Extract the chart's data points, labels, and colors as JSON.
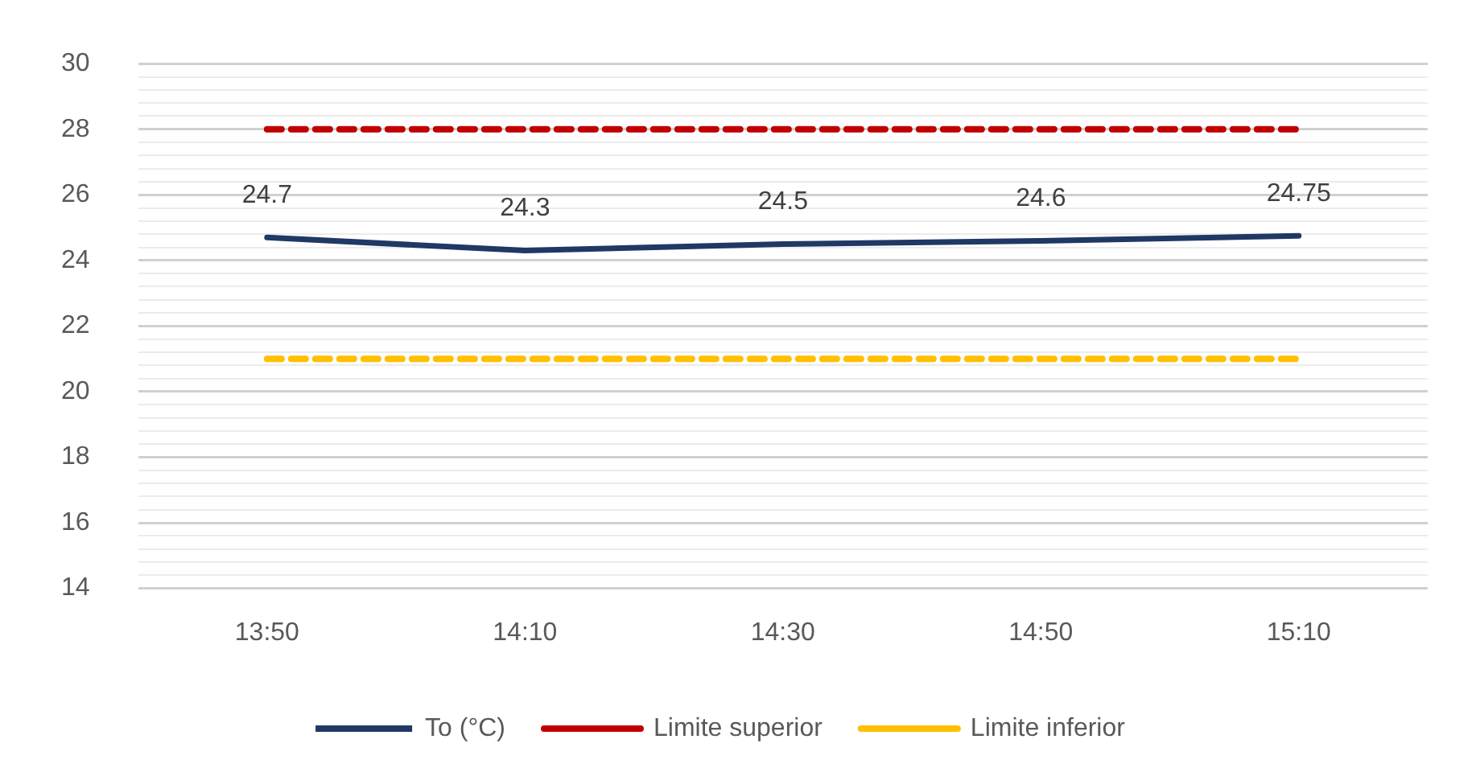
{
  "chart_data": {
    "type": "line",
    "categories": [
      "13:50",
      "14:10",
      "14:30",
      "14:50",
      "15:10"
    ],
    "series": [
      {
        "name": "To (°C)",
        "color": "#203864",
        "values": [
          24.7,
          24.3,
          24.5,
          24.6,
          24.75
        ],
        "value_labels": [
          "24.7",
          "24.3",
          "24.5",
          "24.6",
          "24.75"
        ],
        "line_style": "solid"
      },
      {
        "name": "Limite superior",
        "color": "#c00000",
        "values": [
          28,
          28,
          28,
          28,
          28
        ],
        "line_style": "dashed"
      },
      {
        "name": "Limite inferior",
        "color": "#ffc000",
        "values": [
          21,
          21,
          21,
          21,
          21
        ],
        "line_style": "dashed"
      }
    ],
    "ylim": [
      14,
      30
    ],
    "yticks": [
      14,
      {
        "value": 14.4,
        "label": null
      },
      {
        "value": 14.8,
        "label": null
      },
      {
        "value": 15.2,
        "label": null
      },
      {
        "value": 15.6,
        "label": null
      },
      16,
      {
        "value": 16.4,
        "label": null
      },
      {
        "value": 16.8,
        "label": null
      },
      {
        "value": 17.2,
        "label": null
      },
      {
        "value": 17.6,
        "label": null
      },
      18,
      {
        "value": 18.4,
        "label": null
      },
      {
        "value": 18.8,
        "label": null
      },
      {
        "value": 19.2,
        "label": null
      },
      {
        "value": 19.6,
        "label": null
      },
      20,
      {
        "value": 20.4,
        "label": null
      },
      {
        "value": 20.8,
        "label": null
      },
      {
        "value": 21.2,
        "label": null
      },
      {
        "value": 21.6,
        "label": null
      },
      22,
      {
        "value": 22.4,
        "label": null
      },
      {
        "value": 22.8,
        "label": null
      },
      {
        "value": 23.2,
        "label": null
      },
      {
        "value": 23.6,
        "label": null
      },
      24,
      {
        "value": 24.4,
        "label": null
      },
      {
        "value": 24.8,
        "label": null
      },
      {
        "value": 25.2,
        "label": null
      },
      {
        "value": 25.6,
        "label": null
      },
      26,
      {
        "value": 26.4,
        "label": null
      },
      {
        "value": 26.8,
        "label": null
      },
      {
        "value": 27.2,
        "label": null
      },
      {
        "value": 27.6,
        "label": null
      },
      28,
      {
        "value": 28.4,
        "label": null
      },
      {
        "value": 28.8,
        "label": null
      },
      {
        "value": 29.2,
        "label": null
      },
      {
        "value": 29.6,
        "label": null
      },
      30
    ],
    "grid": "y",
    "legend": "bottom",
    "marker": "none"
  }
}
